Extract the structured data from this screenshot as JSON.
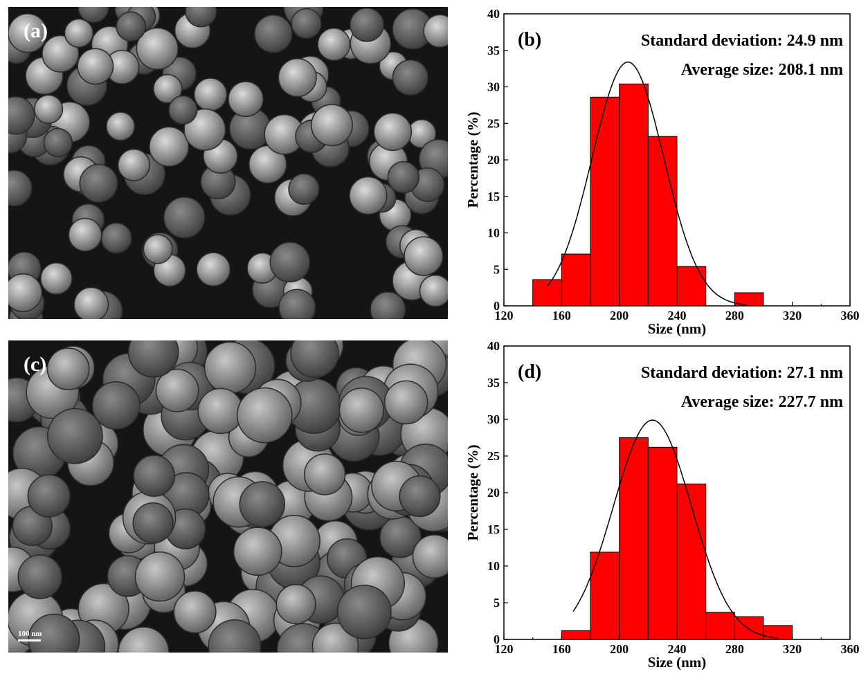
{
  "panels": {
    "a": {
      "tag": "(a)"
    },
    "c": {
      "tag": "(c)",
      "scale_bar": "100 nm"
    }
  },
  "chart_data": [
    {
      "type": "bar",
      "panel_tag": "(b)",
      "xlabel": "Size (nm)",
      "ylabel": "Percentage (%)",
      "xlim": [
        120,
        360
      ],
      "ylim": [
        0,
        40
      ],
      "xticks": [
        120,
        160,
        200,
        240,
        280,
        320,
        360
      ],
      "yticks": [
        0,
        5,
        10,
        15,
        20,
        25,
        30,
        35,
        40
      ],
      "annotations": [
        "Standard deviation: 24.9 nm",
        "Average size: 208.1 nm"
      ],
      "bin_width": 20,
      "bins": [
        140,
        160,
        180,
        200,
        220,
        240,
        260,
        280
      ],
      "values": [
        3.6,
        7.1,
        28.6,
        30.4,
        23.2,
        5.4,
        0,
        1.8
      ],
      "fit": {
        "type": "gaussian",
        "mean": 206,
        "sigma": 24.9,
        "peak": 33.4,
        "range": [
          150,
          288
        ]
      },
      "bar_color": "#ff0000"
    },
    {
      "type": "bar",
      "panel_tag": "(d)",
      "xlabel": "Size (nm)",
      "ylabel": "Percentage (%)",
      "xlim": [
        120,
        360
      ],
      "ylim": [
        0,
        40
      ],
      "xticks": [
        120,
        160,
        200,
        240,
        280,
        320,
        360
      ],
      "yticks": [
        0,
        5,
        10,
        15,
        20,
        25,
        30,
        35,
        40
      ],
      "annotations": [
        "Standard deviation: 27.1 nm",
        "Average size: 227.7 nm"
      ],
      "bin_width": 20,
      "bins": [
        160,
        180,
        200,
        220,
        240,
        260,
        280,
        300
      ],
      "values": [
        1.2,
        11.9,
        27.5,
        26.2,
        21.2,
        3.7,
        3.1,
        1.9
      ],
      "fit": {
        "type": "gaussian",
        "mean": 223,
        "sigma": 27.1,
        "peak": 29.9,
        "range": [
          168,
          310
        ]
      },
      "bar_color": "#ff0000"
    }
  ]
}
